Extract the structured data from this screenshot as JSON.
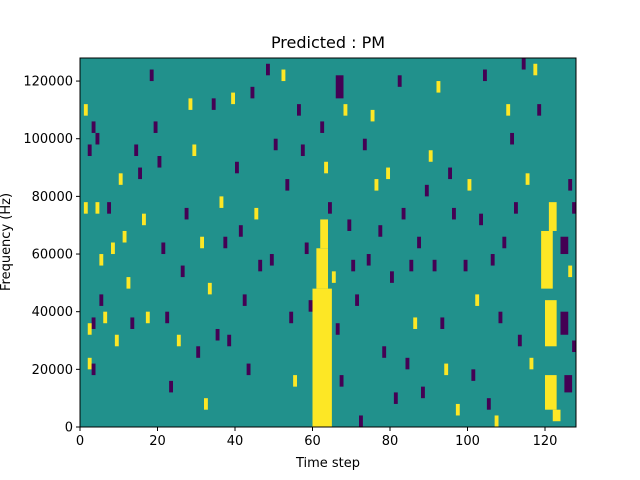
{
  "chart_data": {
    "type": "heatmap",
    "title": "Predicted : PM",
    "xlabel": "Time step",
    "ylabel": "Frequency (Hz)",
    "xlim": [
      0,
      128
    ],
    "ylim": [
      0,
      128000
    ],
    "x_ticks": [
      0,
      20,
      40,
      60,
      80,
      100,
      120
    ],
    "y_ticks": [
      0,
      20000,
      40000,
      60000,
      80000,
      100000,
      120000
    ],
    "colors": {
      "background": "#21918c",
      "high": "#fde725",
      "low": "#440154"
    },
    "grid": false,
    "blocks": [
      {
        "x": 60,
        "w": 5,
        "y0": 0,
        "y1": 48000,
        "v": 1
      },
      {
        "x": 61,
        "w": 3,
        "y0": 48000,
        "y1": 62000,
        "v": 1
      },
      {
        "x": 62,
        "w": 2,
        "y0": 62000,
        "y1": 72000,
        "v": 1
      },
      {
        "x": 120,
        "w": 3,
        "y0": 28000,
        "y1": 44000,
        "v": 1
      },
      {
        "x": 119,
        "w": 3,
        "y0": 48000,
        "y1": 68000,
        "v": 1
      },
      {
        "x": 120,
        "w": 3,
        "y0": 6000,
        "y1": 18000,
        "v": 1
      },
      {
        "x": 121,
        "w": 2,
        "y0": 68000,
        "y1": 78000,
        "v": 1
      },
      {
        "x": 122,
        "w": 2,
        "y0": 2000,
        "y1": 6000,
        "v": 1
      },
      {
        "x": 66,
        "w": 2,
        "y0": 114000,
        "y1": 122000,
        "v": -1
      },
      {
        "x": 124,
        "w": 2,
        "y0": 32000,
        "y1": 40000,
        "v": -1
      },
      {
        "x": 124,
        "w": 2,
        "y0": 60000,
        "y1": 66000,
        "v": -1
      },
      {
        "x": 125,
        "w": 2,
        "y0": 12000,
        "y1": 18000,
        "v": -1
      }
    ],
    "cells": [
      {
        "x": 1,
        "y": 76000,
        "v": 1
      },
      {
        "x": 1,
        "y": 110000,
        "v": 1
      },
      {
        "x": 2,
        "y": 96000,
        "v": -1
      },
      {
        "x": 3,
        "y": 104000,
        "v": -1
      },
      {
        "x": 4,
        "y": 100000,
        "v": -1
      },
      {
        "x": 4,
        "y": 76000,
        "v": 1
      },
      {
        "x": 3,
        "y": 36000,
        "v": -1
      },
      {
        "x": 2,
        "y": 34000,
        "v": 1
      },
      {
        "x": 2,
        "y": 22000,
        "v": 1
      },
      {
        "x": 3,
        "y": 20000,
        "v": -1
      },
      {
        "x": 5,
        "y": 58000,
        "v": 1
      },
      {
        "x": 5,
        "y": 44000,
        "v": -1
      },
      {
        "x": 6,
        "y": 38000,
        "v": 1
      },
      {
        "x": 7,
        "y": 76000,
        "v": -1
      },
      {
        "x": 8,
        "y": 62000,
        "v": 1
      },
      {
        "x": 9,
        "y": 30000,
        "v": 1
      },
      {
        "x": 10,
        "y": 86000,
        "v": 1
      },
      {
        "x": 11,
        "y": 66000,
        "v": 1
      },
      {
        "x": 12,
        "y": 50000,
        "v": 1
      },
      {
        "x": 13,
        "y": 36000,
        "v": -1
      },
      {
        "x": 14,
        "y": 96000,
        "v": -1
      },
      {
        "x": 15,
        "y": 88000,
        "v": -1
      },
      {
        "x": 16,
        "y": 72000,
        "v": 1
      },
      {
        "x": 17,
        "y": 38000,
        "v": 1
      },
      {
        "x": 18,
        "y": 122000,
        "v": -1
      },
      {
        "x": 19,
        "y": 104000,
        "v": -1
      },
      {
        "x": 20,
        "y": 92000,
        "v": -1
      },
      {
        "x": 21,
        "y": 62000,
        "v": -1
      },
      {
        "x": 22,
        "y": 38000,
        "v": -1
      },
      {
        "x": 23,
        "y": 14000,
        "v": -1
      },
      {
        "x": 25,
        "y": 30000,
        "v": 1
      },
      {
        "x": 26,
        "y": 54000,
        "v": -1
      },
      {
        "x": 27,
        "y": 74000,
        "v": -1
      },
      {
        "x": 28,
        "y": 112000,
        "v": 1
      },
      {
        "x": 29,
        "y": 96000,
        "v": 1
      },
      {
        "x": 30,
        "y": 26000,
        "v": -1
      },
      {
        "x": 31,
        "y": 64000,
        "v": 1
      },
      {
        "x": 32,
        "y": 8000,
        "v": 1
      },
      {
        "x": 33,
        "y": 48000,
        "v": 1
      },
      {
        "x": 34,
        "y": 112000,
        "v": -1
      },
      {
        "x": 35,
        "y": 32000,
        "v": -1
      },
      {
        "x": 36,
        "y": 78000,
        "v": 1
      },
      {
        "x": 37,
        "y": 64000,
        "v": -1
      },
      {
        "x": 38,
        "y": 30000,
        "v": -1
      },
      {
        "x": 39,
        "y": 114000,
        "v": 1
      },
      {
        "x": 40,
        "y": 90000,
        "v": -1
      },
      {
        "x": 41,
        "y": 68000,
        "v": -1
      },
      {
        "x": 42,
        "y": 44000,
        "v": -1
      },
      {
        "x": 43,
        "y": 20000,
        "v": -1
      },
      {
        "x": 44,
        "y": 116000,
        "v": -1
      },
      {
        "x": 45,
        "y": 74000,
        "v": 1
      },
      {
        "x": 46,
        "y": 56000,
        "v": -1
      },
      {
        "x": 48,
        "y": 124000,
        "v": -1
      },
      {
        "x": 49,
        "y": 58000,
        "v": -1
      },
      {
        "x": 50,
        "y": 98000,
        "v": -1
      },
      {
        "x": 52,
        "y": 122000,
        "v": 1
      },
      {
        "x": 53,
        "y": 84000,
        "v": -1
      },
      {
        "x": 54,
        "y": 38000,
        "v": -1
      },
      {
        "x": 55,
        "y": 16000,
        "v": 1
      },
      {
        "x": 56,
        "y": 110000,
        "v": -1
      },
      {
        "x": 57,
        "y": 96000,
        "v": -1
      },
      {
        "x": 58,
        "y": 62000,
        "v": -1
      },
      {
        "x": 59,
        "y": 42000,
        "v": -1
      },
      {
        "x": 60,
        "y": 6000,
        "v": 1
      },
      {
        "x": 62,
        "y": 104000,
        "v": -1
      },
      {
        "x": 63,
        "y": 90000,
        "v": 1
      },
      {
        "x": 64,
        "y": 76000,
        "v": -1
      },
      {
        "x": 65,
        "y": 52000,
        "v": 1
      },
      {
        "x": 66,
        "y": 34000,
        "v": -1
      },
      {
        "x": 67,
        "y": 16000,
        "v": -1
      },
      {
        "x": 68,
        "y": 110000,
        "v": 1
      },
      {
        "x": 69,
        "y": 70000,
        "v": -1
      },
      {
        "x": 70,
        "y": 56000,
        "v": -1
      },
      {
        "x": 71,
        "y": 44000,
        "v": -1
      },
      {
        "x": 72,
        "y": 2000,
        "v": -1
      },
      {
        "x": 73,
        "y": 98000,
        "v": -1
      },
      {
        "x": 74,
        "y": 58000,
        "v": -1
      },
      {
        "x": 75,
        "y": 108000,
        "v": 1
      },
      {
        "x": 76,
        "y": 84000,
        "v": 1
      },
      {
        "x": 77,
        "y": 68000,
        "v": -1
      },
      {
        "x": 78,
        "y": 26000,
        "v": -1
      },
      {
        "x": 79,
        "y": 88000,
        "v": 1
      },
      {
        "x": 80,
        "y": 52000,
        "v": -1
      },
      {
        "x": 81,
        "y": 10000,
        "v": -1
      },
      {
        "x": 82,
        "y": 120000,
        "v": -1
      },
      {
        "x": 83,
        "y": 74000,
        "v": -1
      },
      {
        "x": 84,
        "y": 22000,
        "v": -1
      },
      {
        "x": 85,
        "y": 56000,
        "v": -1
      },
      {
        "x": 86,
        "y": 36000,
        "v": 1
      },
      {
        "x": 87,
        "y": 64000,
        "v": -1
      },
      {
        "x": 88,
        "y": 12000,
        "v": -1
      },
      {
        "x": 89,
        "y": 82000,
        "v": -1
      },
      {
        "x": 90,
        "y": 94000,
        "v": 1
      },
      {
        "x": 91,
        "y": 56000,
        "v": -1
      },
      {
        "x": 92,
        "y": 118000,
        "v": 1
      },
      {
        "x": 93,
        "y": 36000,
        "v": -1
      },
      {
        "x": 94,
        "y": 20000,
        "v": 1
      },
      {
        "x": 95,
        "y": 88000,
        "v": -1
      },
      {
        "x": 96,
        "y": 74000,
        "v": -1
      },
      {
        "x": 97,
        "y": 6000,
        "v": 1
      },
      {
        "x": 99,
        "y": 56000,
        "v": -1
      },
      {
        "x": 100,
        "y": 84000,
        "v": 1
      },
      {
        "x": 101,
        "y": 18000,
        "v": -1
      },
      {
        "x": 102,
        "y": 44000,
        "v": 1
      },
      {
        "x": 103,
        "y": 72000,
        "v": -1
      },
      {
        "x": 104,
        "y": 122000,
        "v": -1
      },
      {
        "x": 105,
        "y": 8000,
        "v": -1
      },
      {
        "x": 106,
        "y": 58000,
        "v": -1
      },
      {
        "x": 107,
        "y": 2000,
        "v": 1
      },
      {
        "x": 108,
        "y": 38000,
        "v": -1
      },
      {
        "x": 109,
        "y": 64000,
        "v": -1
      },
      {
        "x": 110,
        "y": 110000,
        "v": 1
      },
      {
        "x": 111,
        "y": 100000,
        "v": -1
      },
      {
        "x": 112,
        "y": 76000,
        "v": -1
      },
      {
        "x": 113,
        "y": 30000,
        "v": -1
      },
      {
        "x": 114,
        "y": 126000,
        "v": -1
      },
      {
        "x": 115,
        "y": 86000,
        "v": 1
      },
      {
        "x": 116,
        "y": 22000,
        "v": 1
      },
      {
        "x": 117,
        "y": 124000,
        "v": 1
      },
      {
        "x": 118,
        "y": 110000,
        "v": -1
      },
      {
        "x": 126,
        "y": 84000,
        "v": -1
      },
      {
        "x": 126,
        "y": 54000,
        "v": 1
      },
      {
        "x": 127,
        "y": 76000,
        "v": -1
      },
      {
        "x": 127,
        "y": 28000,
        "v": -1
      }
    ]
  }
}
